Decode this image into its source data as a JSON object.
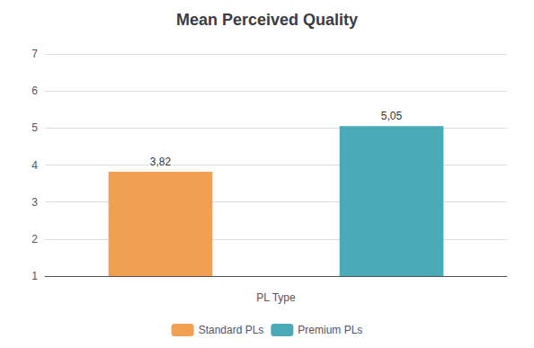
{
  "chart_data": {
    "type": "bar",
    "title": "Mean Perceived Quality",
    "xlabel": "PL Type",
    "categories": [
      "Standard PLs",
      "Premium PLs"
    ],
    "values": [
      3.82,
      5.05
    ],
    "value_labels": [
      "3,82",
      "5,05"
    ],
    "data_labels": true,
    "colors": [
      "#F0A050",
      "#4BAAB8"
    ],
    "ylim": [
      1,
      7
    ],
    "yticks": [
      1,
      2,
      3,
      4,
      5,
      6,
      7
    ],
    "grid": true,
    "tick_labels": "y",
    "legend": "bottom"
  }
}
